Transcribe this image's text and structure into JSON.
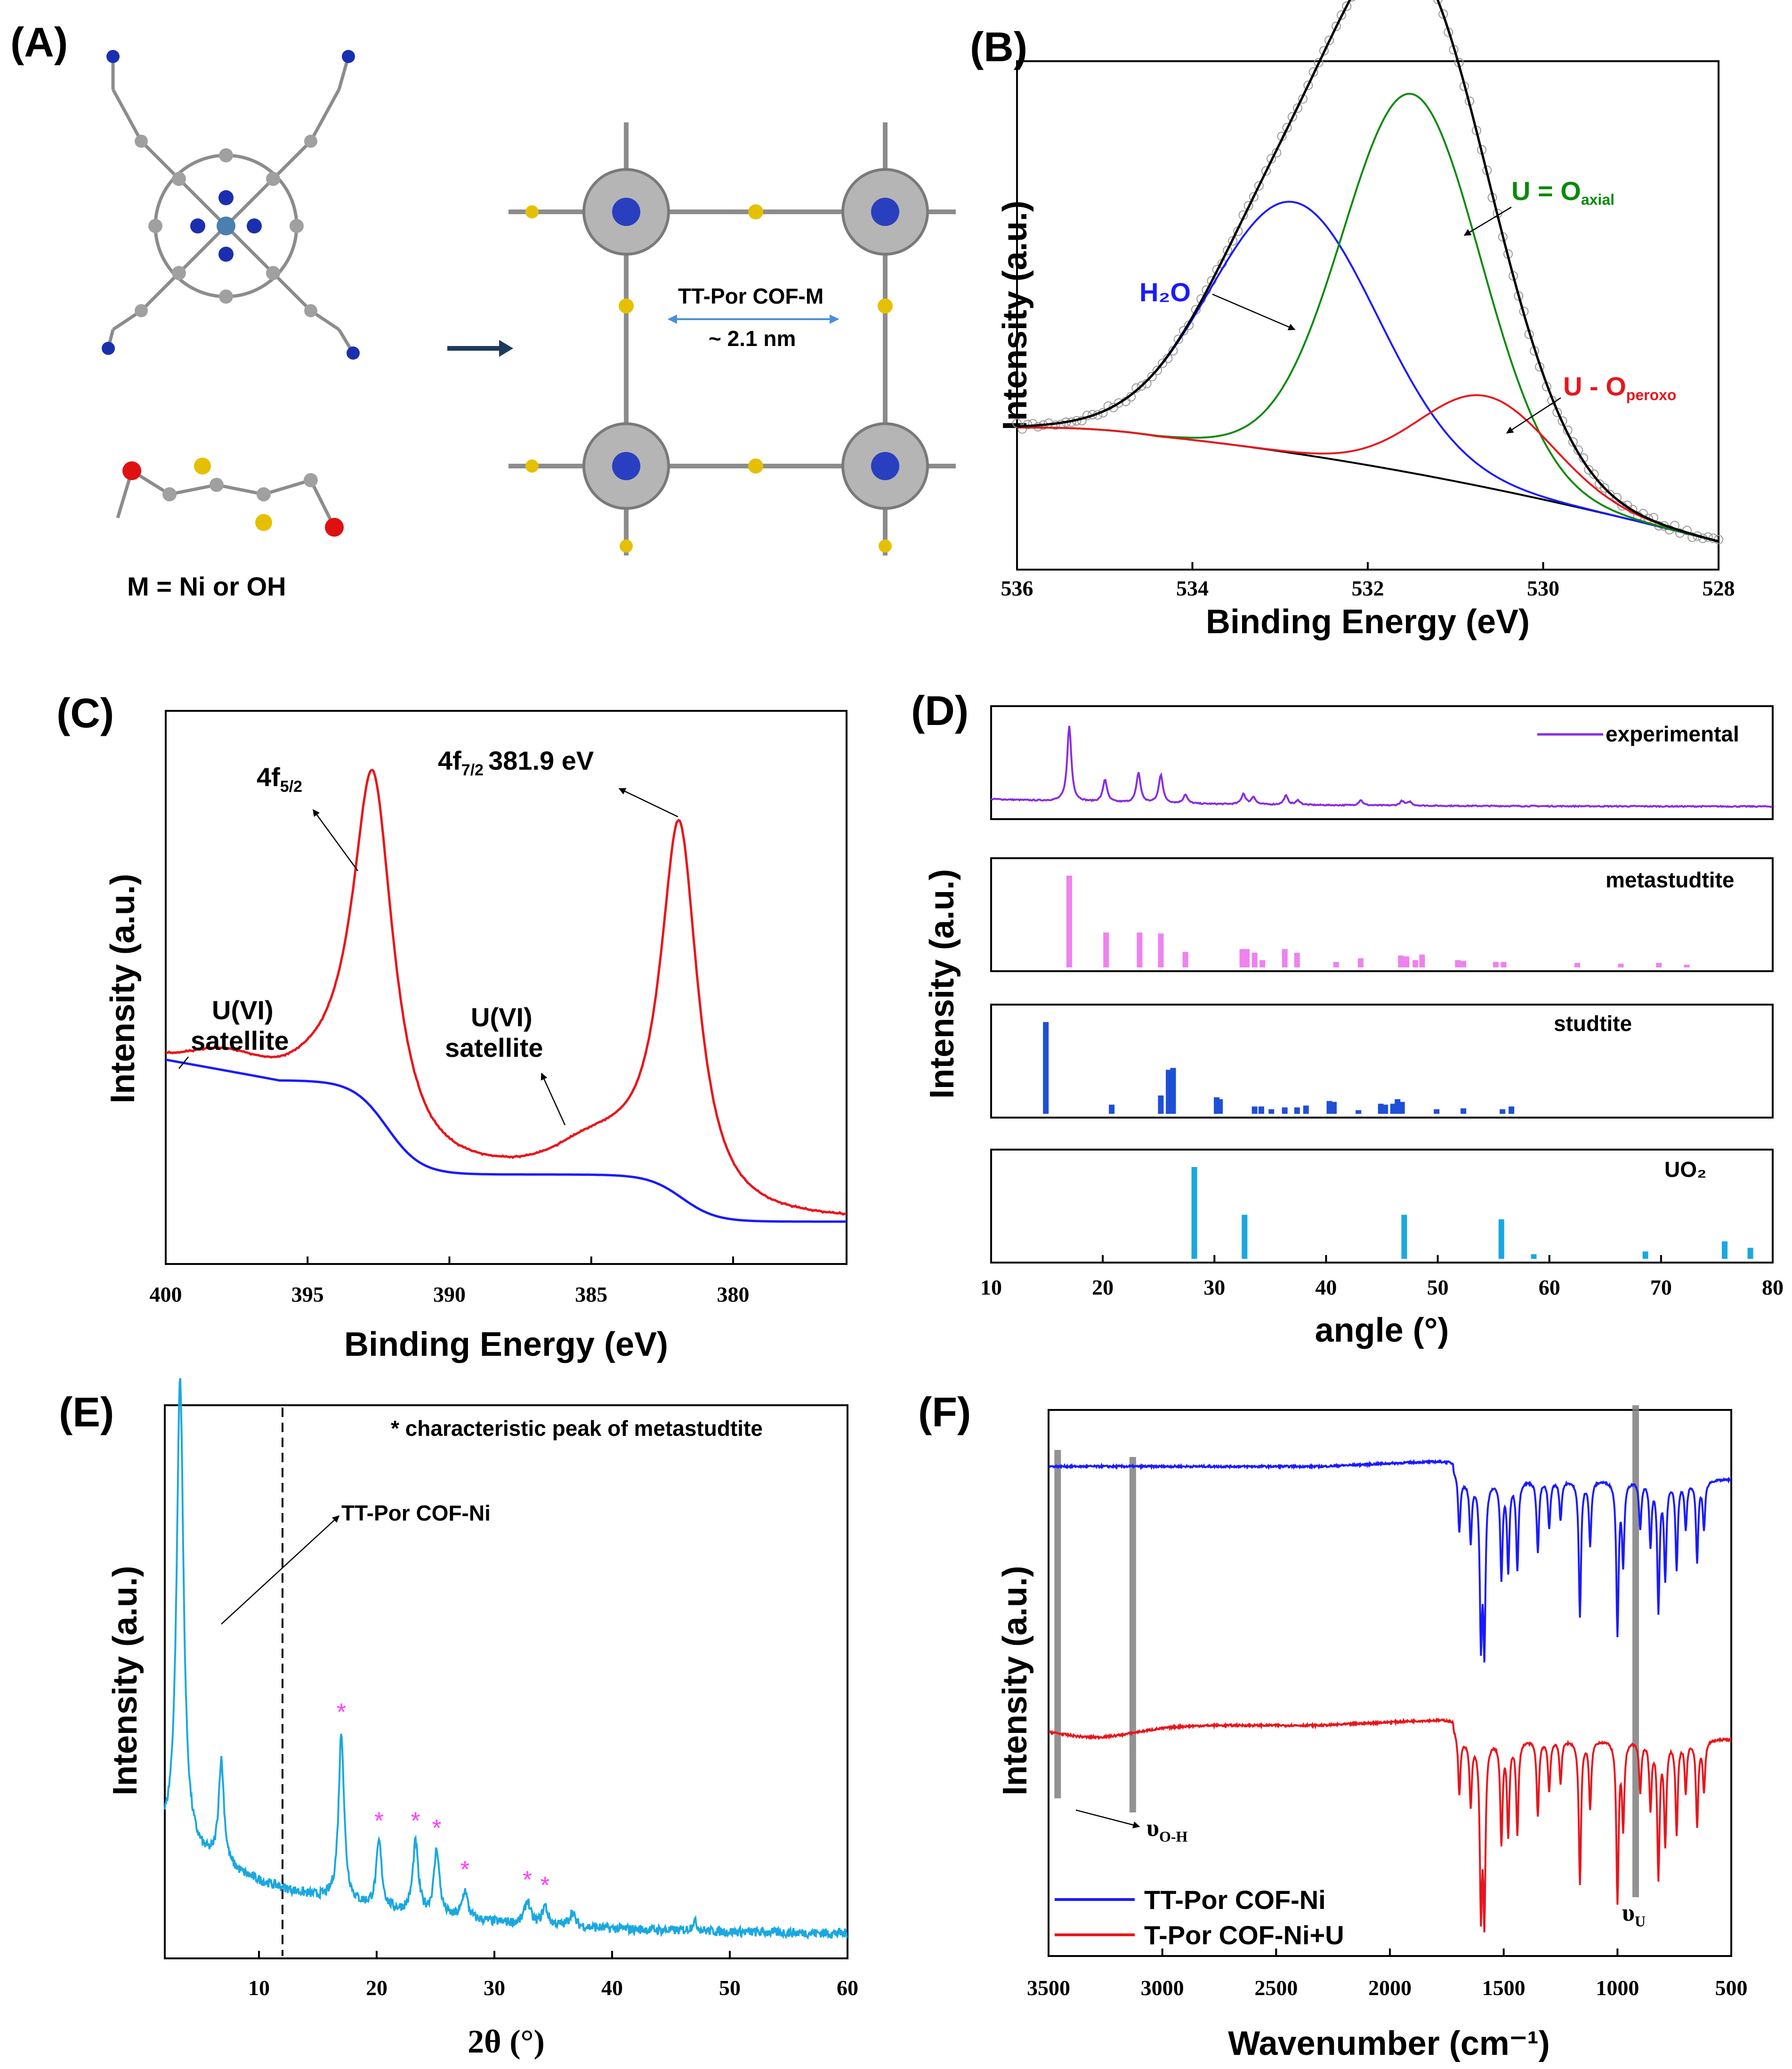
{
  "panels": {
    "A": {
      "label": "(A)",
      "cof_label": "TT-Por COF-M",
      "pore_size": "~ 2.1 nm",
      "caption": "M = Ni or OH"
    },
    "B": {
      "label": "(B)"
    },
    "C": {
      "label": "(C)"
    },
    "D": {
      "label": "(D)"
    },
    "E": {
      "label": "(E)"
    },
    "F": {
      "label": "(F)"
    }
  },
  "colors": {
    "black": "#000000",
    "blue": "#1a1aff",
    "green": "#0a8a0a",
    "red": "#e8161d",
    "purple": "#8a2be2",
    "pink": "#ee82ee",
    "navy_bar": "#1f4fd6",
    "cyan": "#1aa8e0",
    "magenta_star": "#ff40ff",
    "gray": "#808080"
  },
  "chart_data": [
    {
      "id": "B",
      "type": "line",
      "xlabel": "Binding Energy (eV)",
      "ylabel": "Intensity (a.u.)",
      "xlim": [
        536,
        528
      ],
      "xticks": [
        "536",
        "534",
        "532",
        "530",
        "528"
      ],
      "annotations": {
        "h2o": "H₂O",
        "uo_axial_main": "U = O",
        "uo_axial_sub": "axial",
        "uo_peroxo_main": "U - O",
        "uo_peroxo_sub": "peroxo"
      },
      "components": [
        {
          "name": "H2O",
          "color": "blue",
          "center": 532.85,
          "height": 0.55
        },
        {
          "name": "U=O axial",
          "color": "green",
          "center": 531.5,
          "height": 0.83
        },
        {
          "name": "U-O peroxo",
          "color": "red",
          "center": 530.65,
          "height": 0.2
        }
      ]
    },
    {
      "id": "C",
      "type": "line",
      "xlabel": "Binding Energy (eV)",
      "ylabel": "Intensity (a.u.)",
      "xlim": [
        400,
        376
      ],
      "xticks": [
        "400",
        "395",
        "390",
        "385",
        "380"
      ],
      "annotations": {
        "f52_main": "4f",
        "f52_sub": "5/2",
        "f72_main": "4f",
        "f72_sub": "7/2",
        "f72_energy": "381.9 eV",
        "sat1_l1": "U(VI)",
        "sat1_l2": "satellite",
        "sat2_l1": "U(VI)",
        "sat2_l2": "satellite"
      },
      "peaks": [
        {
          "name": "4f5/2",
          "position": 392.7,
          "height": 0.88
        },
        {
          "name": "4f7/2",
          "position": 381.9,
          "height": 1.0
        },
        {
          "name": "U(VI) satellite",
          "position": 384.8,
          "height": 0.12
        }
      ]
    },
    {
      "id": "D",
      "type": "bar",
      "xlabel": "angle (°)",
      "ylabel": "Intensity (a.u.)",
      "xlim": [
        10,
        80
      ],
      "xticks": [
        "10",
        "20",
        "30",
        "40",
        "50",
        "60",
        "70",
        "80"
      ],
      "series": [
        {
          "name": "experimental",
          "color": "purple",
          "type": "line",
          "peaks": [
            [
              17.0,
              1.0
            ],
            [
              20.2,
              0.3
            ],
            [
              23.2,
              0.4
            ],
            [
              25.2,
              0.38
            ],
            [
              27.4,
              0.12
            ],
            [
              32.6,
              0.14
            ],
            [
              33.5,
              0.1
            ],
            [
              36.4,
              0.12
            ],
            [
              37.5,
              0.06
            ],
            [
              43.1,
              0.07
            ],
            [
              46.8,
              0.06
            ],
            [
              47.5,
              0.05
            ]
          ]
        },
        {
          "name": "metastudtite",
          "color": "pink",
          "peaks": [
            [
              17.0,
              1.0
            ],
            [
              20.3,
              0.38
            ],
            [
              23.3,
              0.38
            ],
            [
              25.2,
              0.37
            ],
            [
              27.4,
              0.17
            ],
            [
              32.5,
              0.2
            ],
            [
              32.9,
              0.2
            ],
            [
              33.6,
              0.16
            ],
            [
              34.3,
              0.08
            ],
            [
              36.3,
              0.2
            ],
            [
              37.4,
              0.16
            ],
            [
              40.9,
              0.06
            ],
            [
              43.1,
              0.1
            ],
            [
              46.7,
              0.13
            ],
            [
              47.2,
              0.12
            ],
            [
              48.0,
              0.08
            ],
            [
              48.6,
              0.14
            ],
            [
              51.8,
              0.08
            ],
            [
              52.3,
              0.07
            ],
            [
              55.2,
              0.06
            ],
            [
              55.9,
              0.06
            ],
            [
              62.5,
              0.05
            ],
            [
              66.4,
              0.04
            ],
            [
              69.8,
              0.05
            ],
            [
              72.3,
              0.03
            ]
          ]
        },
        {
          "name": "studtite",
          "color": "navy_bar",
          "peaks": [
            [
              14.9,
              1.0
            ],
            [
              20.8,
              0.1
            ],
            [
              25.2,
              0.2
            ],
            [
              25.9,
              0.48
            ],
            [
              26.3,
              0.5
            ],
            [
              30.2,
              0.18
            ],
            [
              30.5,
              0.16
            ],
            [
              33.6,
              0.08
            ],
            [
              34.2,
              0.08
            ],
            [
              35.1,
              0.05
            ],
            [
              36.3,
              0.07
            ],
            [
              37.4,
              0.07
            ],
            [
              38.2,
              0.09
            ],
            [
              40.3,
              0.14
            ],
            [
              40.7,
              0.13
            ],
            [
              42.9,
              0.04
            ],
            [
              44.9,
              0.11
            ],
            [
              45.3,
              0.1
            ],
            [
              46.0,
              0.11
            ],
            [
              46.4,
              0.16
            ],
            [
              46.8,
              0.13
            ],
            [
              49.9,
              0.05
            ],
            [
              52.3,
              0.06
            ],
            [
              55.8,
              0.05
            ],
            [
              56.6,
              0.08
            ]
          ]
        },
        {
          "name": "UO₂",
          "color": "cyan",
          "peaks": [
            [
              28.2,
              1.0
            ],
            [
              32.7,
              0.48
            ],
            [
              47.0,
              0.48
            ],
            [
              55.7,
              0.43
            ],
            [
              58.6,
              0.05
            ],
            [
              68.6,
              0.08
            ],
            [
              75.7,
              0.19
            ],
            [
              78.0,
              0.12
            ]
          ]
        }
      ]
    },
    {
      "id": "E",
      "type": "line",
      "xlabel": "2θ (°)",
      "ylabel": "Intensity (a.u.)",
      "xlim": [
        2,
        60
      ],
      "xticks": [
        "10",
        "20",
        "30",
        "40",
        "50",
        "60"
      ],
      "note": "* characteristic peak of metastudtite",
      "marker_label": "TT-Por COF-Ni",
      "marker_x": 12,
      "star": "*",
      "peaks": [
        [
          3.3,
          1.0
        ],
        [
          6.8,
          0.22
        ],
        [
          17.0,
          0.36
        ],
        [
          20.2,
          0.14
        ],
        [
          23.3,
          0.15
        ],
        [
          25.1,
          0.14
        ],
        [
          27.5,
          0.06
        ],
        [
          32.8,
          0.05
        ],
        [
          34.3,
          0.04
        ],
        [
          36.6,
          0.03
        ],
        [
          47.0,
          0.02
        ]
      ],
      "stars_at": [
        17.0,
        20.2,
        23.3,
        25.1,
        27.5,
        32.8,
        34.3
      ]
    },
    {
      "id": "F",
      "type": "line",
      "xlabel": "Wavenumber (cm⁻¹)",
      "ylabel": "Intensity (a.u.)",
      "xlim": [
        3500,
        500
      ],
      "xticks": [
        "3500",
        "3000",
        "2500",
        "2000",
        "1500",
        "1000",
        "500"
      ],
      "oh_main": "υ",
      "oh_sub": "O-H",
      "u_main": "υ",
      "u_sub": "U",
      "gray_lines_at": [
        3460,
        3130,
        920
      ],
      "series": [
        {
          "name": "TT-Por COF-Ni",
          "color": "blue"
        },
        {
          "name": "T-Por COF-Ni+U",
          "color": "red"
        }
      ],
      "bands": [
        1695,
        1645,
        1600,
        1585,
        1510,
        1480,
        1440,
        1350,
        1300,
        1250,
        1165,
        1120,
        1000,
        975,
        900,
        855,
        820,
        790,
        740,
        700,
        650,
        620
      ]
    }
  ]
}
